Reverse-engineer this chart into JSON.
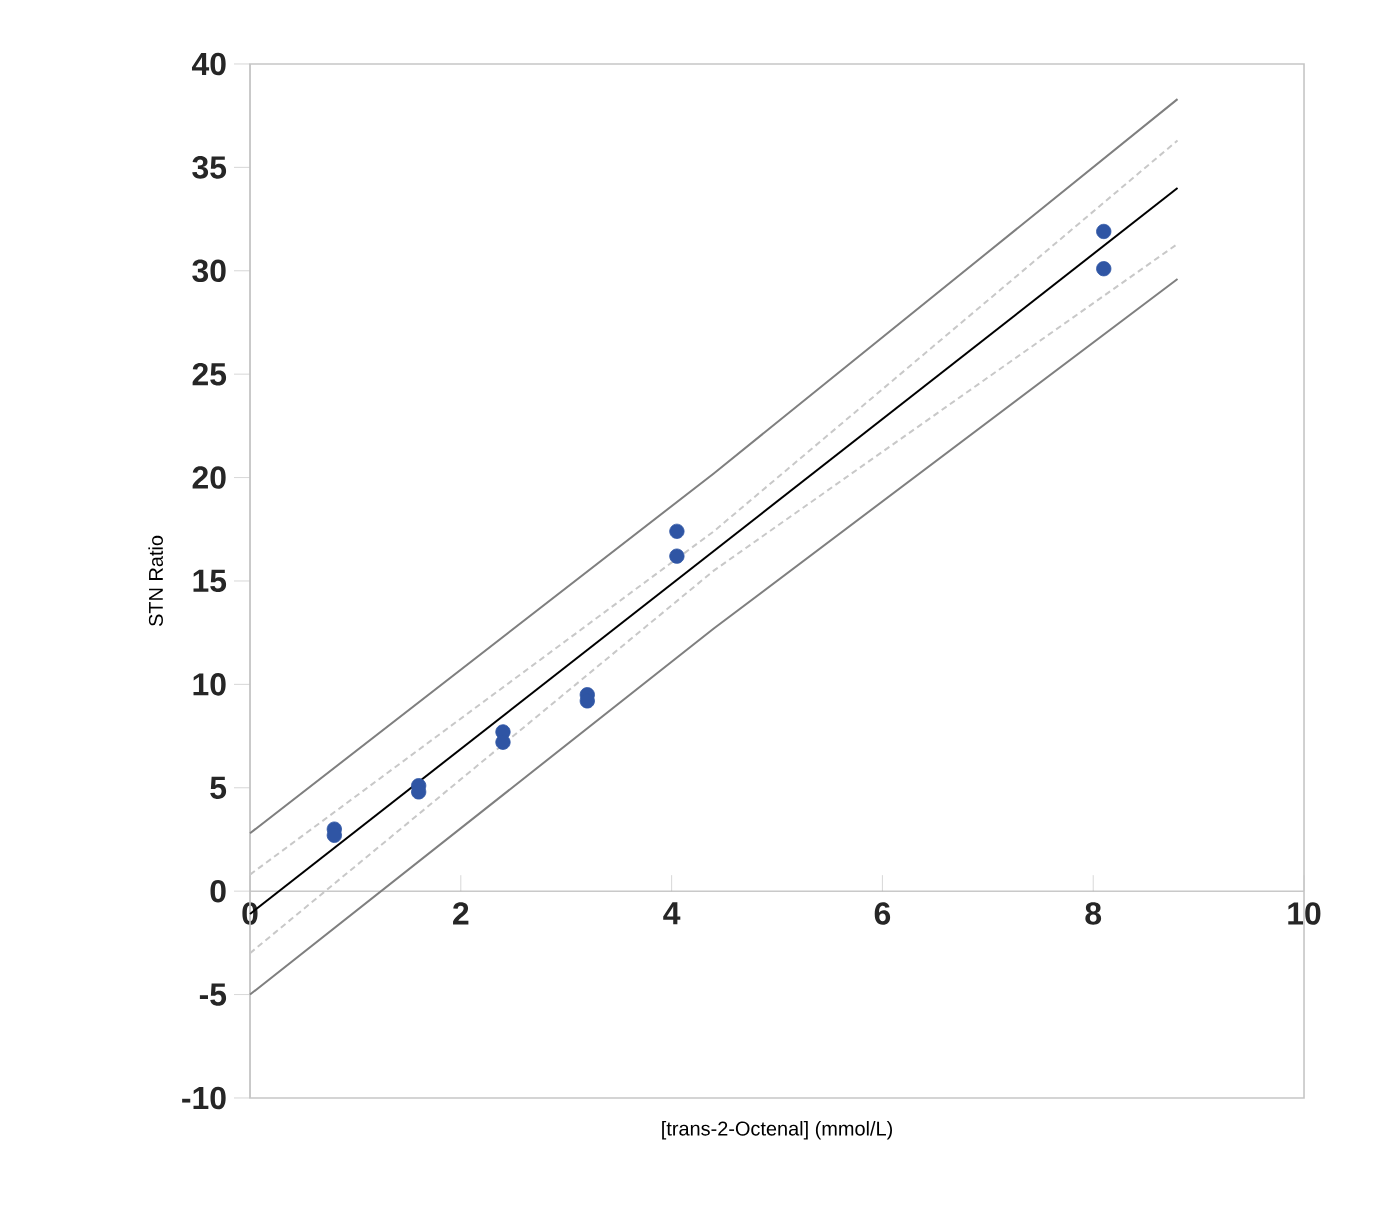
{
  "chart_data": {
    "type": "scatter",
    "xlabel": "[trans-2-Octenal] (mmol/L)",
    "ylabel": "STN Ratio",
    "xlim": [
      0,
      10
    ],
    "ylim": [
      -10,
      40
    ],
    "xticks": [
      0,
      2,
      4,
      6,
      8,
      10
    ],
    "yticks": [
      -10,
      -5,
      0,
      5,
      10,
      15,
      20,
      25,
      30,
      35,
      40
    ],
    "series": [
      {
        "type": "line",
        "color": "#7f7f7f",
        "line_style": "solid",
        "marker": "none",
        "x": [
          0,
          4.4,
          8.8
        ],
        "values": [
          2.8,
          20.2,
          38.3
        ]
      },
      {
        "type": "line",
        "color": "#c8c8c8",
        "line_style": "dashed",
        "marker": "none",
        "x": [
          0,
          4.4,
          8.8
        ],
        "values": [
          0.8,
          17.4,
          36.3
        ]
      },
      {
        "type": "line",
        "color": "#000000",
        "line_style": "solid",
        "marker": "none",
        "x": [
          0,
          8.8
        ],
        "values": [
          -1.1,
          34.0
        ]
      },
      {
        "type": "line",
        "color": "#c8c8c8",
        "line_style": "dashed",
        "marker": "none",
        "x": [
          0,
          4.4,
          8.8
        ],
        "values": [
          -3.0,
          15.5,
          31.3
        ]
      },
      {
        "type": "line",
        "color": "#7f7f7f",
        "line_style": "solid",
        "marker": "none",
        "x": [
          0,
          4.4,
          8.8
        ],
        "values": [
          -5.0,
          12.7,
          29.6
        ]
      },
      {
        "color": "#2f55a4",
        "marker": "circle",
        "x": [
          0.8,
          0.8,
          1.6,
          1.6,
          2.4,
          2.4,
          3.2,
          3.2,
          4.05,
          4.05,
          8.1,
          8.1
        ],
        "values": [
          3.0,
          2.7,
          5.1,
          4.8,
          7.7,
          7.2,
          9.5,
          9.2,
          17.4,
          16.2,
          31.9,
          30.1
        ]
      }
    ]
  }
}
